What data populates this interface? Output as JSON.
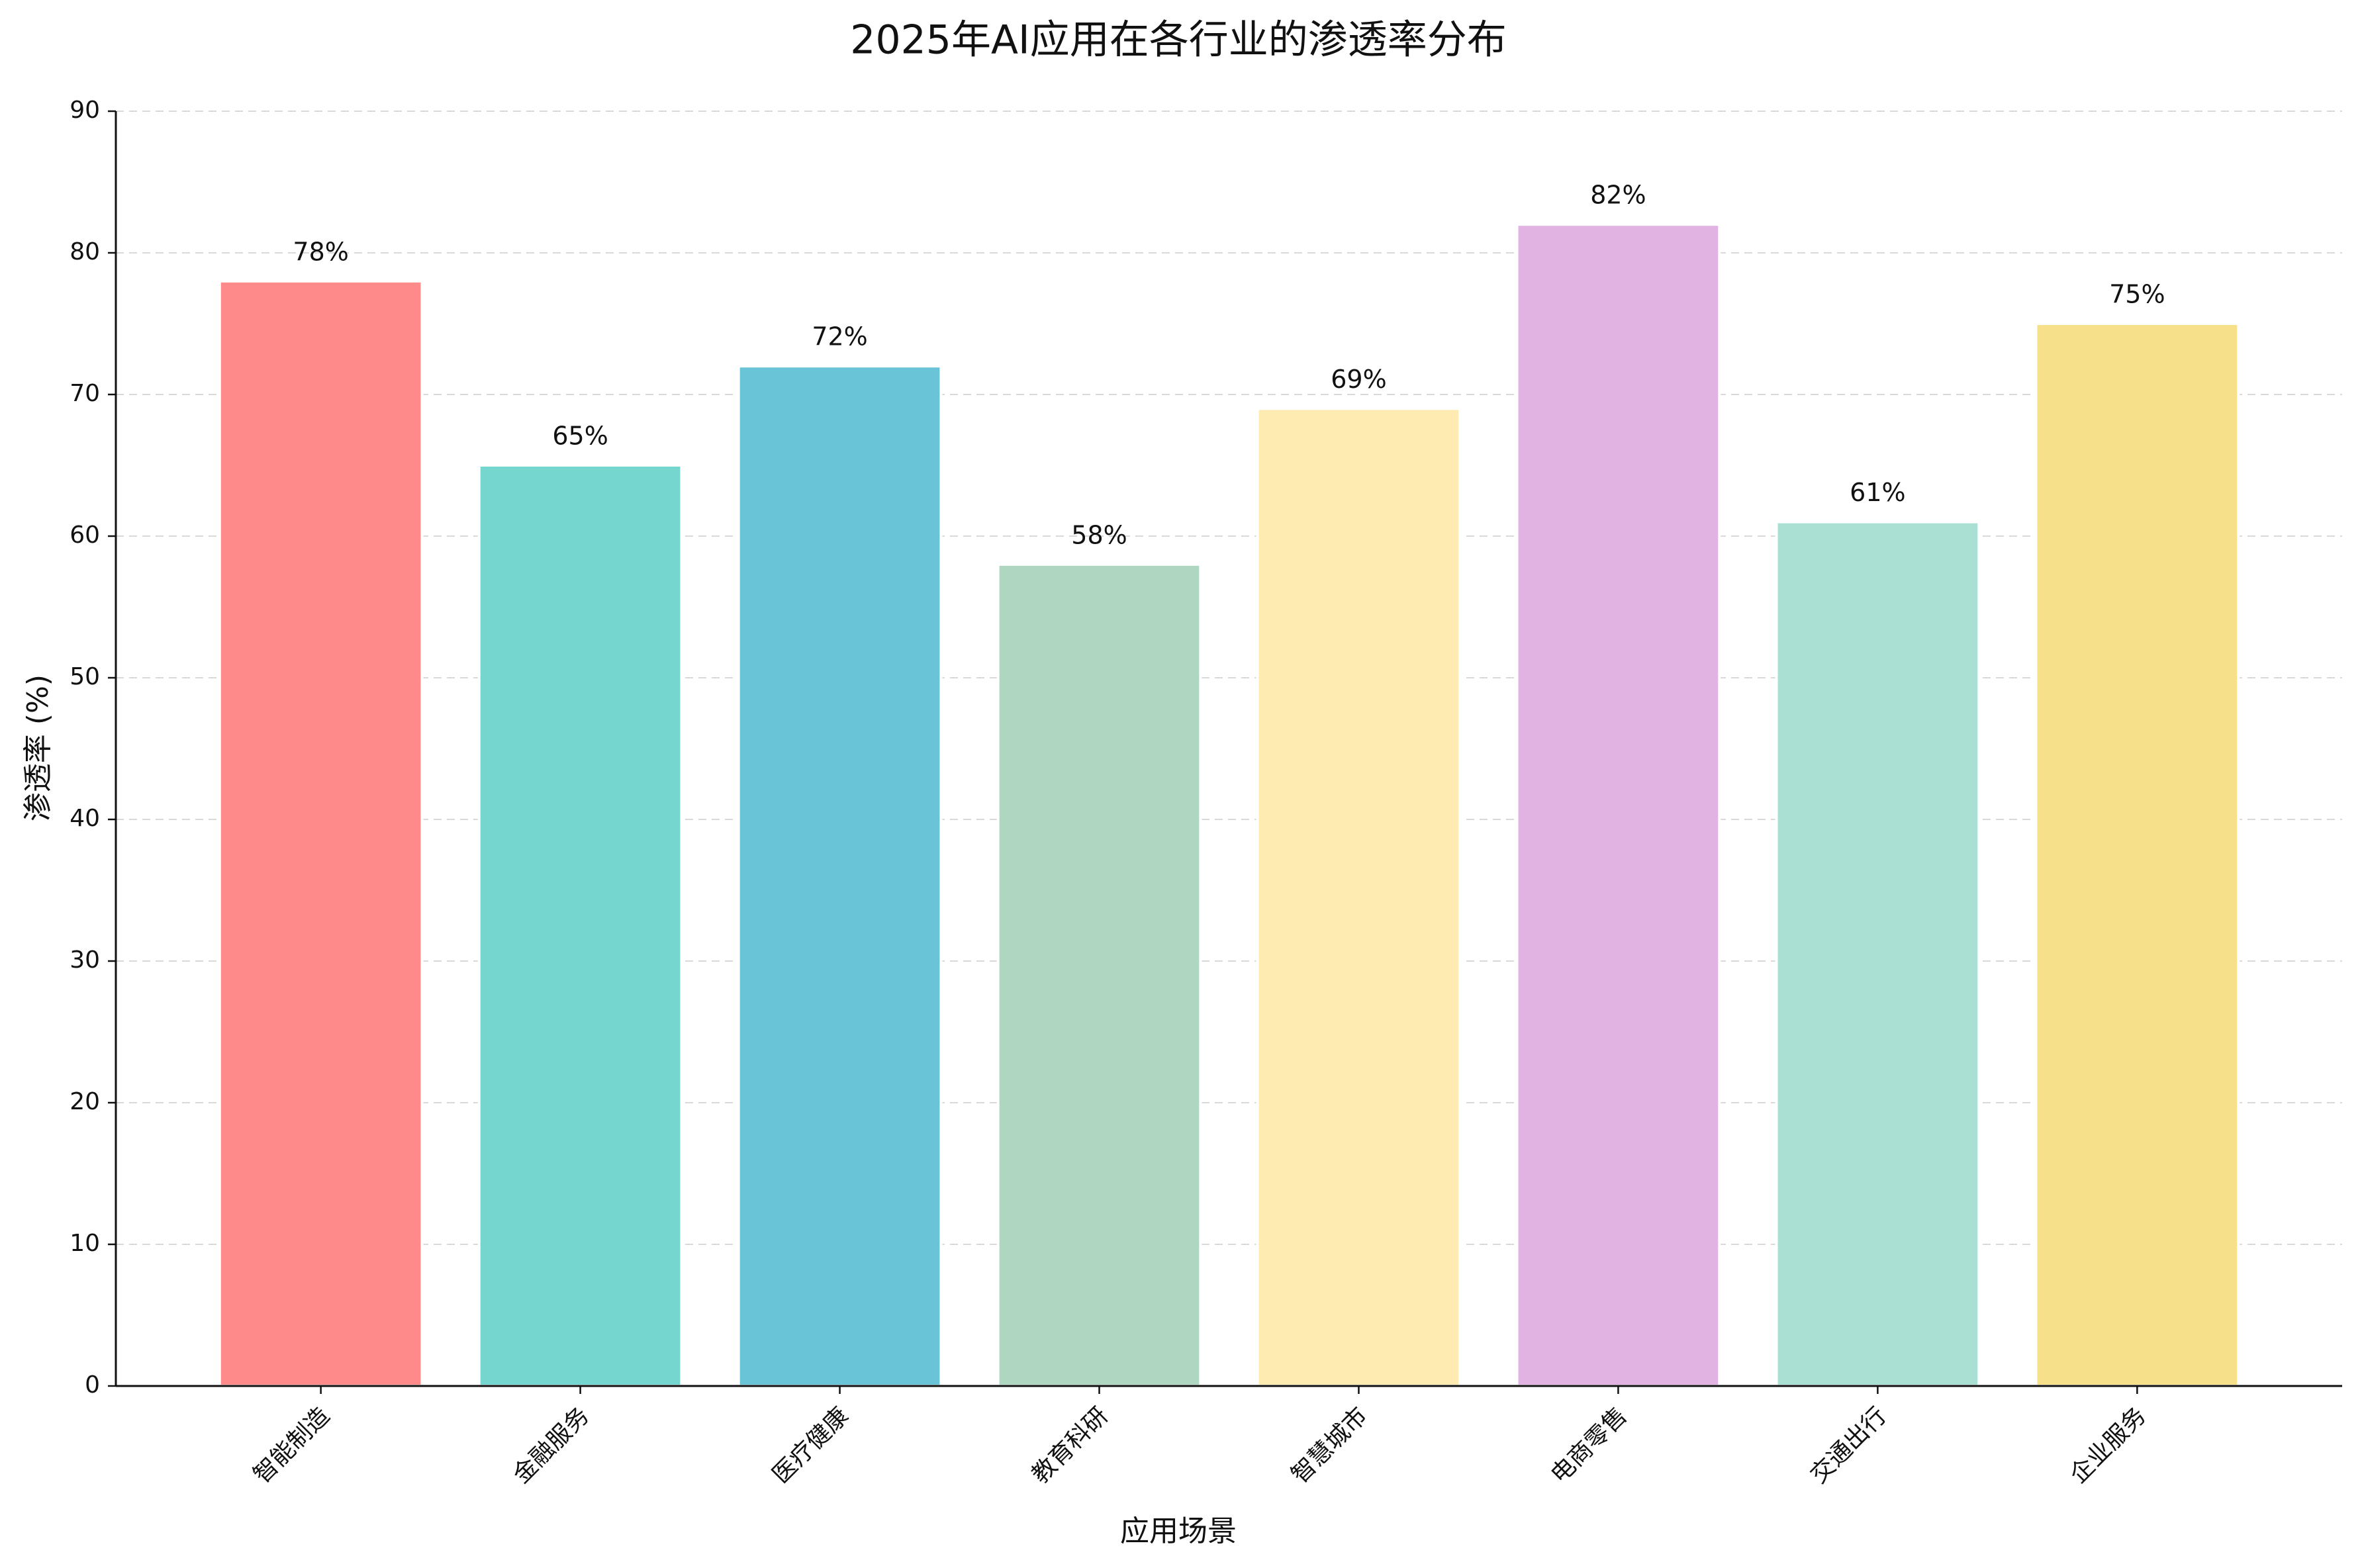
{
  "chart_data": {
    "type": "bar",
    "title": "2025年AI应用在各行业的渗透率分布",
    "xlabel": "应用场景",
    "ylabel": "渗透率 (%)",
    "categories": [
      "智能制造",
      "金融服务",
      "医疗健康",
      "教育科研",
      "智慧城市",
      "电商零售",
      "交通出行",
      "企业服务"
    ],
    "values": [
      78,
      65,
      72,
      58,
      69,
      82,
      61,
      75
    ],
    "value_labels": [
      "78%",
      "65%",
      "72%",
      "58%",
      "69%",
      "82%",
      "61%",
      "75%"
    ],
    "colors": [
      "#ff8a8a",
      "#74d6cf",
      "#6ac4d8",
      "#aed6c1",
      "#feebb2",
      "#e1b3e2",
      "#aae0d3",
      "#f6e08a"
    ],
    "ylim": [
      0,
      90
    ],
    "yticks": [
      0,
      10,
      20,
      30,
      40,
      50,
      60,
      70,
      80,
      90
    ],
    "grid": true
  }
}
